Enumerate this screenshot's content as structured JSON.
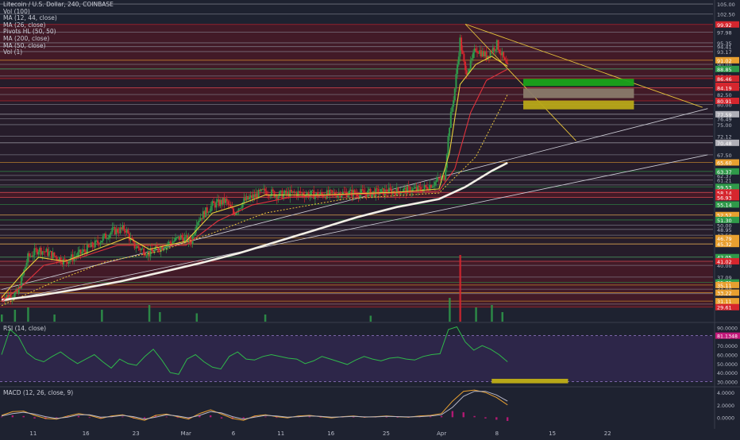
{
  "legend": {
    "symbol": "Litecoin / U.S. Dollar, 240, COINBASE",
    "indicators": [
      "Vol (100)",
      "MA (12, 44, close)",
      "MA (26, close)",
      "Pivots HL (50, 50)",
      "MA (200, close)",
      "MA (50, close)",
      "Vol (1)"
    ]
  },
  "rsi_label": "RSI (14, close)",
  "macd_label": "MACD (12, 26, close, 9)",
  "colors": {
    "background": "#1e2230",
    "band_red": "#5a1a24",
    "band_dark": "#261c2a",
    "candle_up": "#2f9a4a",
    "candle_down": "#d5262e",
    "ma12": "#e8cf3a",
    "ma26": "#e0323c",
    "ma200": "#f2efe6",
    "ma50": "#e8c43a",
    "rsi_line": "#2fb84a",
    "rsi_band": "#3a2a5e",
    "macd_line": "#e8a030",
    "signal_line": "#b8b8c8",
    "hist": "#c2187a"
  },
  "chart_data": [
    {
      "type": "candlestick",
      "title": "Litecoin / U.S. Dollar, 240, COINBASE",
      "ylim": [
        26,
        106
      ],
      "x_ticks": [
        "11",
        "16",
        "23",
        "Mar",
        "6",
        "11",
        "16",
        "25",
        "Apr",
        "8",
        "15",
        "22"
      ],
      "price_scale_labels": [
        "105.00",
        "102.50",
        "97.98",
        "95.35",
        "94.41",
        "93.17",
        "90.00",
        "88.85",
        "87.08",
        "84.19",
        "82.50",
        "80.00",
        "76.49",
        "75.00",
        "72.12",
        "67.50",
        "62.37",
        "61.21",
        "60.00",
        "58.14",
        "56.93",
        "52.52",
        "50.00",
        "48.95",
        "47.50",
        "45.32",
        "42.05",
        "41.02",
        "40.00",
        "37.09",
        "34.08",
        "32.98",
        "30.37"
      ],
      "highlighted_price_labels": [
        {
          "label": "99.92",
          "color": "#d5262e"
        },
        {
          "label": "91.02",
          "color": "#e8a030"
        },
        {
          "label": "88.85",
          "color": "#2f9a4a"
        },
        {
          "label": "86.46",
          "color": "#d5262e"
        },
        {
          "label": "01:29:51",
          "color": "#d5262e"
        },
        {
          "label": "84.19",
          "color": "#d5262e"
        },
        {
          "label": "80.91",
          "color": "#d5262e"
        },
        {
          "label": "77.59",
          "color": "#b0b0b8"
        },
        {
          "label": "70.48",
          "color": "#b0b0b8"
        },
        {
          "label": "65.60",
          "color": "#e8a030"
        },
        {
          "label": "63.37",
          "color": "#2f9a4a"
        },
        {
          "label": "59.53",
          "color": "#2f9a4a"
        },
        {
          "label": "58.14",
          "color": "#d5262e"
        },
        {
          "label": "56.93",
          "color": "#d5262e"
        },
        {
          "label": "55.14",
          "color": "#2f9a4a"
        },
        {
          "label": "52.52",
          "color": "#e8a030"
        },
        {
          "label": "51.30",
          "color": "#2f9a4a"
        },
        {
          "label": "46.79",
          "color": "#e8a030"
        },
        {
          "label": "45.32",
          "color": "#e8a030"
        },
        {
          "label": "42.05",
          "color": "#2f9a4a"
        },
        {
          "label": "41.02",
          "color": "#d5262e"
        },
        {
          "label": "35.75",
          "color": "#2f9a4a"
        },
        {
          "label": "35.11",
          "color": "#e8a030"
        },
        {
          "label": "33.22",
          "color": "#e8a030"
        },
        {
          "label": "31.11",
          "color": "#e8a030"
        },
        {
          "label": "29.61",
          "color": "#d5262e"
        }
      ],
      "price_path": [
        [
          0,
          32
        ],
        [
          6,
          33
        ],
        [
          10,
          42
        ],
        [
          14,
          44
        ],
        [
          18,
          43
        ],
        [
          24,
          41
        ],
        [
          30,
          43
        ],
        [
          36,
          45.5
        ],
        [
          42,
          48.5
        ],
        [
          47,
          49
        ],
        [
          50,
          45
        ],
        [
          56,
          43
        ],
        [
          62,
          45
        ],
        [
          68,
          47
        ],
        [
          72,
          46
        ],
        [
          74,
          51
        ],
        [
          80,
          55
        ],
        [
          85,
          56
        ],
        [
          88,
          53
        ],
        [
          92,
          56
        ],
        [
          100,
          58.5
        ],
        [
          105,
          57.5
        ],
        [
          112,
          58
        ],
        [
          120,
          57.5
        ],
        [
          130,
          58
        ],
        [
          140,
          58
        ],
        [
          150,
          58.5
        ],
        [
          160,
          59
        ],
        [
          168,
          62
        ],
        [
          170,
          75
        ],
        [
          172,
          84
        ],
        [
          174,
          96
        ],
        [
          176,
          88
        ],
        [
          178,
          90
        ],
        [
          180,
          94
        ],
        [
          184,
          92
        ],
        [
          188,
          95
        ],
        [
          190,
          92
        ],
        [
          192,
          89
        ]
      ],
      "ma12_path": [
        [
          0,
          32
        ],
        [
          8,
          38
        ],
        [
          14,
          42
        ],
        [
          24,
          41
        ],
        [
          36,
          44
        ],
        [
          48,
          47
        ],
        [
          56,
          44
        ],
        [
          70,
          46
        ],
        [
          80,
          53
        ],
        [
          90,
          55
        ],
        [
          100,
          57.5
        ],
        [
          120,
          57.5
        ],
        [
          150,
          58.2
        ],
        [
          166,
          59
        ],
        [
          170,
          68
        ],
        [
          174,
          85
        ],
        [
          180,
          90
        ],
        [
          186,
          92
        ],
        [
          192,
          89.5
        ]
      ],
      "ma26_path": [
        [
          0,
          31
        ],
        [
          8,
          35
        ],
        [
          16,
          40
        ],
        [
          30,
          42
        ],
        [
          44,
          45
        ],
        [
          56,
          45
        ],
        [
          70,
          45
        ],
        [
          82,
          51
        ],
        [
          95,
          55
        ],
        [
          110,
          57
        ],
        [
          140,
          57.8
        ],
        [
          166,
          58.5
        ],
        [
          172,
          64
        ],
        [
          178,
          78
        ],
        [
          184,
          86
        ],
        [
          192,
          88.8
        ]
      ],
      "ma50_path": [
        [
          0,
          30
        ],
        [
          20,
          36
        ],
        [
          40,
          41
        ],
        [
          60,
          43.5
        ],
        [
          80,
          48
        ],
        [
          100,
          53
        ],
        [
          130,
          56.5
        ],
        [
          166,
          58
        ],
        [
          180,
          67
        ],
        [
          192,
          82.5
        ]
      ],
      "ma200_path": [
        [
          0,
          31.4
        ],
        [
          15,
          32.6
        ],
        [
          30,
          34.2
        ],
        [
          45,
          36
        ],
        [
          60,
          38.2
        ],
        [
          75,
          40.5
        ],
        [
          90,
          43
        ],
        [
          105,
          46
        ],
        [
          120,
          49
        ],
        [
          135,
          52
        ],
        [
          150,
          54.5
        ],
        [
          166,
          56.5
        ],
        [
          176,
          59.5
        ],
        [
          186,
          63.5
        ],
        [
          192,
          65.5
        ]
      ],
      "zones": [
        {
          "y1": 86.4,
          "y2": 84.6,
          "color": "#1aa31a"
        },
        {
          "y1": 84.0,
          "y2": 81.6,
          "color": "#8a7a6a"
        },
        {
          "y1": 81.0,
          "y2": 78.8,
          "color": "#b8a818"
        }
      ],
      "volume": [
        {
          "x": 0,
          "v": 0.3
        },
        {
          "x": 5,
          "v": 0.5
        },
        {
          "x": 10,
          "v": 0.6
        },
        {
          "x": 20,
          "v": 0.3
        },
        {
          "x": 38,
          "v": 0.5
        },
        {
          "x": 56,
          "v": 0.7
        },
        {
          "x": 60,
          "v": 0.4
        },
        {
          "x": 74,
          "v": 0.35
        },
        {
          "x": 100,
          "v": 0.3
        },
        {
          "x": 140,
          "v": 0.25
        },
        {
          "x": 170,
          "v": 1.0
        },
        {
          "x": 174,
          "v": 2.8
        },
        {
          "x": 180,
          "v": 0.6
        },
        {
          "x": 186,
          "v": 0.7
        },
        {
          "x": 190,
          "v": 0.4
        }
      ]
    },
    {
      "type": "line",
      "title": "RSI (14, close)",
      "ylim": [
        25,
        95
      ],
      "y_ticks": [
        "90.0000",
        "81.1348",
        "70.0000",
        "60.0000",
        "50.0000",
        "40.0000",
        "30.0000"
      ],
      "values": [
        60,
        88,
        80,
        62,
        55,
        52,
        58,
        63,
        56,
        50,
        55,
        60,
        52,
        45,
        55,
        50,
        48,
        58,
        66,
        54,
        40,
        38,
        55,
        60,
        52,
        46,
        44,
        58,
        63,
        55,
        54,
        58,
        60,
        58,
        56,
        55,
        50,
        53,
        58,
        55,
        52,
        49,
        54,
        58,
        55,
        53,
        56,
        57,
        55,
        54,
        58,
        60,
        61,
        88,
        91,
        74,
        65,
        70,
        66,
        60,
        52
      ]
    },
    {
      "type": "bar",
      "title": "MACD (12, 26, close, 9)",
      "ylim": [
        -1.5,
        4.8
      ],
      "y_ticks": [
        "4.0000",
        "2.0000",
        "0.0000"
      ],
      "macd_line": [
        0.3,
        0.9,
        1.0,
        0.3,
        -0.2,
        -0.3,
        0.2,
        0.6,
        0.3,
        -0.2,
        0.2,
        0.4,
        -0.1,
        -0.5,
        0.3,
        0.5,
        0.1,
        -0.3,
        0.6,
        1.2,
        0.5,
        -0.2,
        -0.5,
        0.2,
        0.4,
        0.1,
        -0.1,
        0.2,
        0.3,
        0.1,
        -0.1,
        0.1,
        0.2,
        0.0,
        0.1,
        0.2,
        0.1,
        0.0,
        0.2,
        0.3,
        0.6,
        2.6,
        4.2,
        4.4,
        4.0,
        3.2,
        2.0
      ],
      "signal_line": [
        0.2,
        0.6,
        0.8,
        0.5,
        0.1,
        -0.2,
        0.0,
        0.4,
        0.4,
        0.0,
        0.1,
        0.3,
        0.1,
        -0.3,
        0.0,
        0.4,
        0.2,
        -0.1,
        0.3,
        0.9,
        0.7,
        0.1,
        -0.3,
        0.0,
        0.3,
        0.2,
        0.0,
        0.1,
        0.2,
        0.15,
        0.0,
        0.05,
        0.15,
        0.05,
        0.05,
        0.15,
        0.1,
        0.05,
        0.1,
        0.2,
        0.4,
        1.6,
        3.4,
        4.2,
        4.2,
        3.6,
        2.6
      ]
    }
  ]
}
